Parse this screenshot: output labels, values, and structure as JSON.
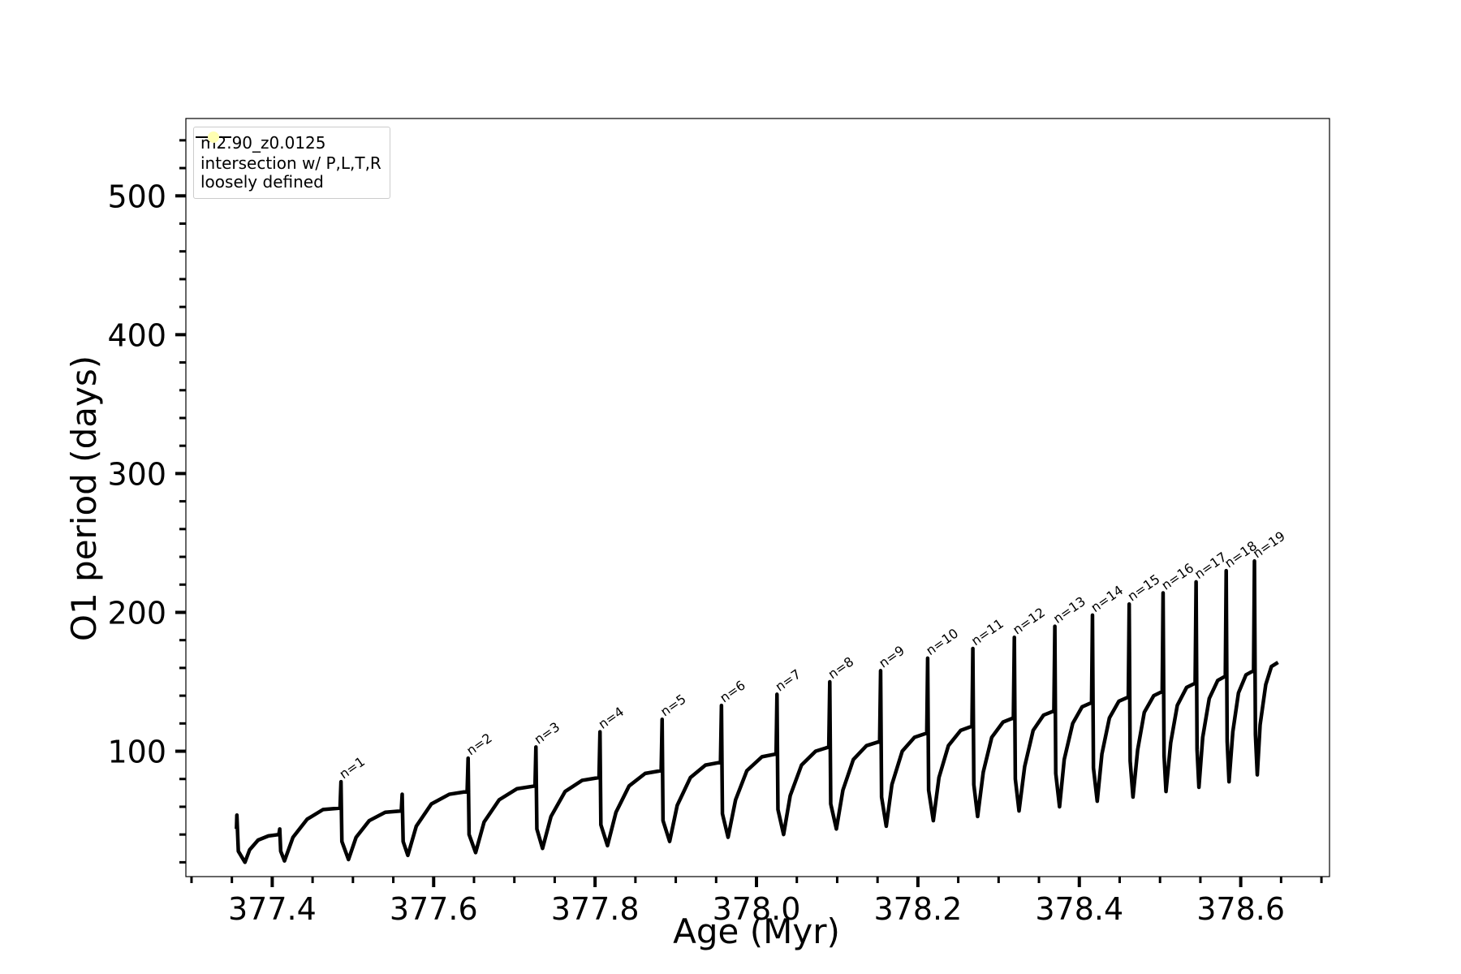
{
  "chart_data": {
    "type": "line",
    "xlabel": "Age (Myr)",
    "ylabel": "O1 period (days)",
    "xlim": [
      377.293,
      378.71
    ],
    "ylim": [
      9.7,
      555.7
    ],
    "xticks": [
      {
        "value": 377.4,
        "label": "377.4"
      },
      {
        "value": 377.6,
        "label": "377.6"
      },
      {
        "value": 377.8,
        "label": "377.8"
      },
      {
        "value": 378.0,
        "label": "378.0"
      },
      {
        "value": 378.2,
        "label": "378.2"
      },
      {
        "value": 378.4,
        "label": "378.4"
      },
      {
        "value": 378.6,
        "label": "378.6"
      }
    ],
    "yticks": [
      100,
      200,
      300,
      400,
      500
    ],
    "xminorticks": [
      377.3,
      377.35,
      377.45,
      377.5,
      377.55,
      377.65,
      377.7,
      377.75,
      377.85,
      377.9,
      377.95,
      378.05,
      378.1,
      378.15,
      378.25,
      378.3,
      378.35,
      378.45,
      378.5,
      378.55,
      378.65,
      378.7
    ],
    "yminorticks": [
      20,
      40,
      60,
      80,
      120,
      140,
      160,
      180,
      220,
      240,
      260,
      280,
      320,
      340,
      360,
      380,
      420,
      440,
      460,
      480,
      520,
      540
    ],
    "legend": "upper left",
    "series": [
      {
        "name": "m2.90_z0.0125",
        "color": "#000000",
        "x": [
          377.3557,
          377.3562,
          377.358,
          377.3662,
          377.372,
          377.3825,
          377.3953,
          377.4082,
          377.4093,
          377.4105,
          377.4152,
          377.4257,
          377.4432,
          377.463,
          377.484,
          377.4852,
          377.4863,
          377.4945,
          377.5039,
          377.5202,
          377.54,
          377.5599,
          377.561,
          377.5622,
          377.568,
          377.5785,
          377.5972,
          377.6194,
          377.6415,
          377.6427,
          377.6439,
          377.652,
          377.6625,
          377.6812,
          377.7034,
          377.7256,
          377.7267,
          377.7279,
          377.7349,
          377.7454,
          377.7629,
          377.7839,
          377.8049,
          377.8061,
          377.8072,
          377.8154,
          377.8259,
          377.8422,
          377.8621,
          377.8819,
          377.8831,
          377.8842,
          377.8924,
          377.9018,
          377.9181,
          377.9368,
          377.9554,
          377.9566,
          377.9578,
          377.9648,
          377.9741,
          377.9881,
          378.0068,
          378.0243,
          378.0254,
          378.0266,
          378.0336,
          378.0418,
          378.0558,
          378.0733,
          378.0896,
          378.0908,
          378.092,
          378.099,
          378.1071,
          378.12,
          378.1363,
          378.1526,
          378.1538,
          378.155,
          378.1608,
          378.1678,
          378.1806,
          378.1958,
          378.211,
          378.2121,
          378.2133,
          378.2191,
          378.2261,
          378.2378,
          378.253,
          378.267,
          378.2681,
          378.2693,
          378.274,
          378.281,
          378.2915,
          378.3055,
          378.3183,
          378.3195,
          378.3207,
          378.3253,
          378.3323,
          378.3428,
          378.3557,
          378.3685,
          378.3697,
          378.3708,
          378.3755,
          378.3813,
          378.3918,
          378.4035,
          378.4152,
          378.4163,
          378.4175,
          378.4222,
          378.428,
          378.4373,
          378.449,
          378.4607,
          378.4618,
          378.463,
          378.4665,
          378.4723,
          378.4805,
          378.4922,
          378.5027,
          378.5038,
          378.505,
          378.5074,
          378.5132,
          378.5214,
          378.533,
          378.5435,
          378.5447,
          378.5459,
          378.5482,
          378.5529,
          378.561,
          378.5715,
          378.5809,
          378.582,
          378.5832,
          378.5855,
          378.5902,
          378.5972,
          378.6065,
          378.6159,
          378.617,
          378.6182,
          378.6205,
          378.624,
          378.631,
          378.638,
          378.6462
        ],
        "values": [
          44,
          54,
          28,
          20,
          29,
          36,
          39,
          40,
          44,
          28,
          21,
          38,
          51,
          58,
          59,
          78,
          35,
          22,
          38,
          50,
          56,
          57,
          69,
          35,
          25,
          46,
          62,
          69,
          71,
          95,
          40,
          27,
          49,
          65,
          73,
          75,
          103,
          44,
          30,
          53,
          71,
          79,
          81,
          114,
          47,
          32,
          56,
          75,
          84,
          86,
          123,
          50,
          35,
          61,
          81,
          90,
          92,
          133,
          55,
          38,
          65,
          86,
          96,
          98,
          141,
          58,
          40,
          68,
          90,
          100,
          103,
          150,
          62,
          44,
          72,
          94,
          104,
          107,
          158,
          67,
          46,
          76,
          100,
          110,
          113,
          167,
          72,
          50,
          81,
          104,
          115,
          118,
          174,
          76,
          53,
          85,
          110,
          121,
          124,
          182,
          80,
          57,
          89,
          115,
          126,
          129,
          190,
          84,
          60,
          94,
          120,
          132,
          135,
          198,
          88,
          64,
          98,
          124,
          136,
          139,
          206,
          93,
          67,
          101,
          128,
          140,
          143,
          214,
          97,
          71,
          106,
          133,
          146,
          149,
          222,
          101,
          74,
          110,
          138,
          151,
          154,
          230,
          107,
          78,
          114,
          142,
          155,
          158,
          237,
          112,
          83,
          119,
          148,
          161,
          164
        ]
      },
      {
        "name": "intersection w/ P,L,T,R\nloosely defined",
        "color": "#ffffb3",
        "x": [],
        "values": []
      }
    ],
    "annotations": [
      {
        "text": "n=1",
        "x": 377.4852,
        "y": 78
      },
      {
        "text": "n=2",
        "x": 377.6427,
        "y": 95
      },
      {
        "text": "n=3",
        "x": 377.7267,
        "y": 103
      },
      {
        "text": "n=4",
        "x": 377.8061,
        "y": 114
      },
      {
        "text": "n=5",
        "x": 377.8831,
        "y": 123
      },
      {
        "text": "n=6",
        "x": 377.9566,
        "y": 133
      },
      {
        "text": "n=7",
        "x": 378.0254,
        "y": 141
      },
      {
        "text": "n=8",
        "x": 378.0908,
        "y": 150
      },
      {
        "text": "n=9",
        "x": 378.1538,
        "y": 158
      },
      {
        "text": "n=10",
        "x": 378.2121,
        "y": 167
      },
      {
        "text": "n=11",
        "x": 378.2681,
        "y": 174
      },
      {
        "text": "n=12",
        "x": 378.3195,
        "y": 182
      },
      {
        "text": "n=13",
        "x": 378.3697,
        "y": 190
      },
      {
        "text": "n=14",
        "x": 378.4163,
        "y": 198
      },
      {
        "text": "n=15",
        "x": 378.4618,
        "y": 206
      },
      {
        "text": "n=16",
        "x": 378.5038,
        "y": 214
      },
      {
        "text": "n=17",
        "x": 378.5447,
        "y": 222
      },
      {
        "text": "n=18",
        "x": 378.582,
        "y": 230
      },
      {
        "text": "n=19",
        "x": 378.617,
        "y": 237
      }
    ]
  }
}
